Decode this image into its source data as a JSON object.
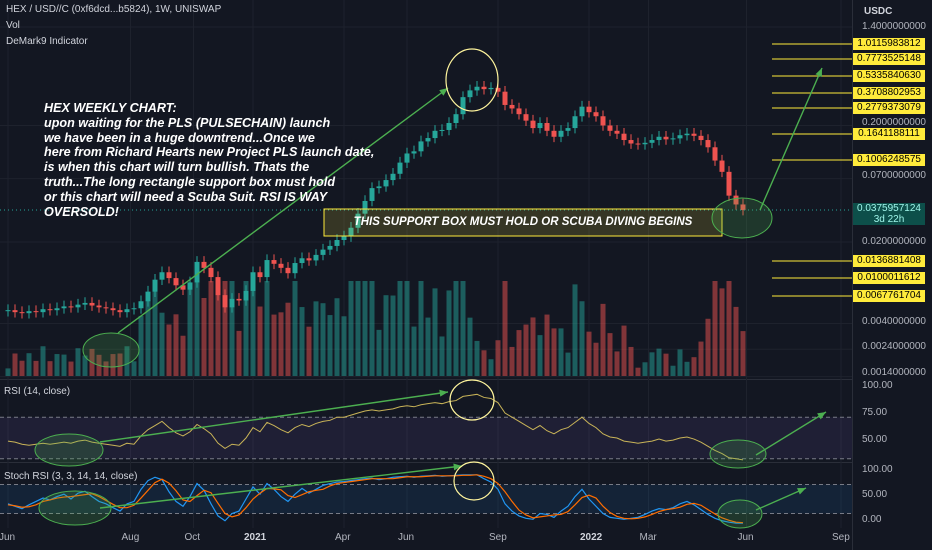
{
  "header": {
    "symbol_line": "HEX / USD//C (0xf6dcd...b5824), 1W, UNISWAP",
    "volume_label": "Vol",
    "indicator_label": "DeMark9 Indicator",
    "currency": "USDC"
  },
  "annotation": {
    "lines": [
      "HEX WEEKLY CHART:",
      "upon waiting for the PLS (PULSECHAIN) launch",
      "we have been in a huge downtrend...Once we",
      "here from Richard Hearts new Project PLS launch date,",
      "is when this chart will turn bullish. Thats the",
      "truth...The long rectangle support box must hold",
      "or this chart will need a Scuba Suit. RSI IS WAY",
      "OVERSOLD!"
    ],
    "support_box_text": "THIS SUPPORT BOX MUST HOLD OR SCUBA DIVING BEGINS"
  },
  "colors": {
    "background": "#131722",
    "up": "#26a69a",
    "down": "#ef5350",
    "annotation_line": "#4caf50",
    "support_box": "#ffeb3b",
    "rsi_line": "#c9b458",
    "stoch_k": "#2196f3",
    "stoch_d": "#ff6d00"
  },
  "chart_data": [
    {
      "type": "candlestick",
      "name": "HEX / USDC weekly (log scale)",
      "y_scale": "log",
      "price_levels": [
        "1.0115983812",
        "0.7773525148",
        "0.5335840630",
        "0.3708802953",
        "0.2779373079",
        "0.1641188111",
        "0.1006248575",
        "0.0136881408",
        "0.0100011612",
        "0.0067761704"
      ],
      "current_price": "0.0375957124",
      "countdown": "3d 22h",
      "price_ticks": [
        {
          "label": "1.4000000000",
          "value": 1.4
        },
        {
          "label": "0.2000000000",
          "value": 0.2
        },
        {
          "label": "0.0700000000",
          "value": 0.07
        },
        {
          "label": "0.0200000000",
          "value": 0.02
        },
        {
          "label": "0.0040000000",
          "value": 0.004
        },
        {
          "label": "0.0024000000",
          "value": 0.0024
        },
        {
          "label": "0.0014000000",
          "value": 0.0014
        }
      ],
      "time_labels": [
        {
          "label": "Jun",
          "week": 0,
          "bold": false
        },
        {
          "label": "Aug",
          "week": 17.5,
          "bold": false
        },
        {
          "label": "Oct",
          "week": 26.5,
          "bold": false
        },
        {
          "label": "2021",
          "week": 35,
          "bold": true
        },
        {
          "label": "Apr",
          "week": 48,
          "bold": false
        },
        {
          "label": "Jun",
          "week": 57,
          "bold": false
        },
        {
          "label": "Sep",
          "week": 70,
          "bold": false
        },
        {
          "label": "2022",
          "week": 83,
          "bold": true
        },
        {
          "label": "Mar",
          "week": 91.5,
          "bold": false
        },
        {
          "label": "Jun",
          "week": 105.5,
          "bold": false
        },
        {
          "label": "Sep",
          "week": 119,
          "bold": false
        }
      ],
      "weekly_close": [
        0.0052,
        0.005,
        0.0049,
        0.0051,
        0.005,
        0.0053,
        0.0052,
        0.0054,
        0.0056,
        0.0055,
        0.0058,
        0.006,
        0.0057,
        0.0055,
        0.0054,
        0.0052,
        0.005,
        0.0053,
        0.0054,
        0.0062,
        0.0075,
        0.0095,
        0.011,
        0.0098,
        0.0085,
        0.0078,
        0.009,
        0.0135,
        0.012,
        0.01,
        0.007,
        0.0055,
        0.0065,
        0.0063,
        0.0076,
        0.011,
        0.01,
        0.014,
        0.013,
        0.012,
        0.0108,
        0.0132,
        0.0145,
        0.0139,
        0.0155,
        0.0172,
        0.0185,
        0.0208,
        0.0223,
        0.0265,
        0.035,
        0.045,
        0.058,
        0.06,
        0.068,
        0.077,
        0.096,
        0.115,
        0.12,
        0.146,
        0.156,
        0.18,
        0.183,
        0.21,
        0.25,
        0.35,
        0.4,
        0.43,
        0.41,
        0.42,
        0.39,
        0.3,
        0.28,
        0.25,
        0.22,
        0.19,
        0.21,
        0.18,
        0.16,
        0.18,
        0.19,
        0.24,
        0.29,
        0.26,
        0.24,
        0.2,
        0.18,
        0.17,
        0.15,
        0.14,
        0.138,
        0.142,
        0.15,
        0.16,
        0.152,
        0.155,
        0.165,
        0.17,
        0.163,
        0.15,
        0.13,
        0.1,
        0.08,
        0.05,
        0.042,
        0.0376
      ],
      "high": 1.4,
      "low": 0.0042
    },
    {
      "type": "line",
      "name": "RSI",
      "title": "RSI (14, close)",
      "y_ticks": [
        "100.00",
        "75.00",
        "50.00"
      ],
      "ylim": [
        25,
        100
      ],
      "bands": [
        70,
        30
      ],
      "values": [
        47,
        46,
        44,
        43,
        44,
        45,
        44,
        45,
        46,
        45,
        47,
        48,
        46,
        45,
        44,
        43,
        42,
        45,
        44,
        52,
        58,
        62,
        66,
        60,
        55,
        52,
        56,
        63,
        59,
        54,
        45,
        40,
        44,
        43,
        50,
        60,
        56,
        65,
        62,
        58,
        55,
        60,
        63,
        61,
        64,
        66,
        67,
        70,
        70,
        72,
        74,
        76,
        77,
        76,
        77,
        78,
        80,
        81,
        80,
        82,
        83,
        84,
        83,
        85,
        86,
        90,
        91,
        92,
        89,
        88,
        84,
        74,
        70,
        66,
        62,
        58,
        62,
        57,
        54,
        58,
        60,
        65,
        70,
        64,
        60,
        54,
        51,
        50,
        47,
        46,
        45,
        46,
        47,
        49,
        47,
        48,
        50,
        51,
        49,
        46,
        42,
        38,
        35,
        31,
        30,
        29
      ]
    },
    {
      "type": "line",
      "name": "Stoch RSI",
      "title": "Stoch RSI (3, 3, 14, 14, close)",
      "y_ticks": [
        "100.00",
        "50.00",
        "0.00"
      ],
      "ylim": [
        -10,
        110
      ],
      "bands": [
        80,
        20
      ],
      "k": [
        40,
        35,
        30,
        38,
        45,
        52,
        48,
        55,
        60,
        50,
        62,
        66,
        55,
        45,
        40,
        32,
        25,
        40,
        45,
        70,
        88,
        95,
        90,
        65,
        45,
        35,
        55,
        82,
        68,
        40,
        15,
        5,
        20,
        25,
        50,
        75,
        60,
        82,
        70,
        55,
        45,
        60,
        72,
        62,
        70,
        78,
        82,
        85,
        86,
        88,
        90,
        92,
        93,
        90,
        92,
        95,
        96,
        97,
        95,
        97,
        98,
        99,
        97,
        98,
        99,
        100,
        100,
        100,
        92,
        85,
        70,
        40,
        25,
        15,
        10,
        8,
        20,
        18,
        12,
        25,
        35,
        55,
        70,
        50,
        35,
        20,
        12,
        10,
        8,
        10,
        12,
        18,
        25,
        30,
        28,
        32,
        40,
        45,
        38,
        28,
        18,
        10,
        5,
        2,
        0,
        0
      ],
      "d": [
        38,
        36,
        33,
        34,
        38,
        45,
        48,
        52,
        54,
        55,
        57,
        59,
        61,
        55,
        47,
        39,
        32,
        32,
        37,
        52,
        68,
        84,
        91,
        83,
        67,
        48,
        45,
        57,
        68,
        63,
        41,
        20,
        13,
        17,
        32,
        50,
        62,
        72,
        71,
        69,
        57,
        53,
        59,
        65,
        68,
        70,
        77,
        82,
        84,
        86,
        88,
        90,
        92,
        92,
        92,
        92,
        94,
        96,
        96,
        96,
        97,
        98,
        98,
        98,
        98,
        99,
        99,
        100,
        97,
        92,
        82,
        65,
        45,
        27,
        17,
        11,
        13,
        15,
        17,
        18,
        24,
        38,
        53,
        58,
        52,
        35,
        22,
        14,
        10,
        9,
        10,
        13,
        18,
        24,
        28,
        30,
        33,
        39,
        41,
        37,
        28,
        19,
        11,
        6,
        2,
        1
      ]
    }
  ]
}
